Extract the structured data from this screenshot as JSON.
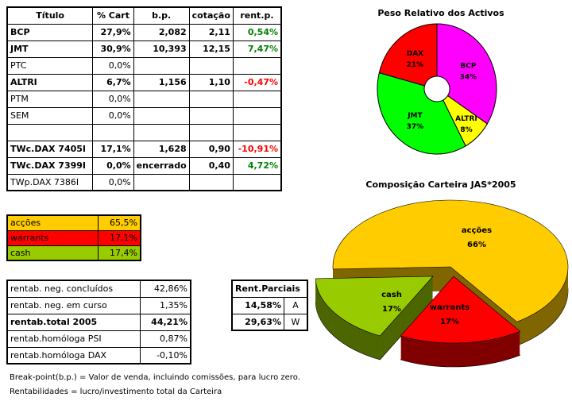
{
  "holdings": {
    "headers": [
      "Título",
      "% Cart",
      "b.p.",
      "cotação",
      "rent.p."
    ],
    "rows": [
      {
        "title": "BCP",
        "pct": "27,9%",
        "bp": "2,082",
        "quote": "2,11",
        "rent": "0,54%",
        "bold": true,
        "sign": "pos"
      },
      {
        "title": "JMT",
        "pct": "30,9%",
        "bp": "10,393",
        "quote": "12,15",
        "rent": "7,47%",
        "bold": true,
        "sign": "pos"
      },
      {
        "title": "PTC",
        "pct": "0,0%",
        "bp": "",
        "quote": "",
        "rent": "",
        "bold": false,
        "sign": ""
      },
      {
        "title": "ALTRI",
        "pct": "6,7%",
        "bp": "1,156",
        "quote": "1,10",
        "rent": "-0,47%",
        "bold": true,
        "sign": "neg"
      },
      {
        "title": "PTM",
        "pct": "0,0%",
        "bp": "",
        "quote": "",
        "rent": "",
        "bold": false,
        "sign": ""
      },
      {
        "title": "SEM",
        "pct": "0,0%",
        "bp": "",
        "quote": "",
        "rent": "",
        "bold": false,
        "sign": ""
      },
      {
        "title": "",
        "pct": "",
        "bp": "",
        "quote": "",
        "rent": "",
        "bold": false,
        "sign": ""
      },
      {
        "title": "TWc.DAX 7405I",
        "pct": "17,1%",
        "bp": "1,628",
        "quote": "0,90",
        "rent": "-10,91%",
        "bold": true,
        "sign": "neg"
      },
      {
        "title": "TWc.DAX 7399I",
        "pct": "0,0%",
        "bp": "encerrado",
        "quote": "0,40",
        "rent": "4,72%",
        "bold": true,
        "sign": "pos"
      },
      {
        "title": "TWp.DAX 7386I",
        "pct": "0,0%",
        "bp": "",
        "quote": "",
        "rent": "",
        "bold": false,
        "sign": ""
      }
    ]
  },
  "allocation": [
    {
      "label": "acções",
      "value": "65,5%",
      "color": "#FFCC00"
    },
    {
      "label": "warrants",
      "value": "17,1%",
      "color": "#FF0000"
    },
    {
      "label": "cash",
      "value": "17,4%",
      "color": "#99CC00"
    }
  ],
  "returns": [
    {
      "label": "rentab. neg. concluídos",
      "value": "42,86%",
      "bold": false
    },
    {
      "label": "rentab. neg. em curso",
      "value": "1,35%",
      "bold": false
    },
    {
      "label": "rentab.total 2005",
      "value": "44,21%",
      "bold": true
    },
    {
      "label": "rentab.homóloga PSI",
      "value": "0,87%",
      "bold": false
    },
    {
      "label": "rentab.homóloga DAX",
      "value": "-0,10%",
      "bold": false
    }
  ],
  "partial": {
    "title": "Rent.Parciais",
    "rows": [
      {
        "value": "14,58%",
        "code": "A"
      },
      {
        "value": "29,63%",
        "code": "W"
      }
    ]
  },
  "notes": [
    "Break-point(b.p.) = Valor de venda, incluindo comissões, para lucro zero.",
    "Rentabilidades = lucro/investimento total da Carteira"
  ],
  "chart_data": [
    {
      "type": "pie",
      "variant": "donut",
      "title": "Peso Relativo dos Activos",
      "slices": [
        {
          "label": "BCP",
          "value": 34,
          "text": "34%",
          "color": "#FF00FF"
        },
        {
          "label": "ALTRI",
          "value": 8,
          "text": "8%",
          "color": "#FFFF00"
        },
        {
          "label": "JMT",
          "value": 37,
          "text": "37%",
          "color": "#00FF00"
        },
        {
          "label": "DAX",
          "value": 21,
          "text": "21%",
          "color": "#FF0000"
        }
      ]
    },
    {
      "type": "pie",
      "variant": "3d-exploded",
      "title": "Composição Carteira JAS*2005",
      "slices": [
        {
          "label": "acções",
          "value": 66,
          "text": "66%",
          "color": "#FFCC00",
          "side": "#806600"
        },
        {
          "label": "warrants",
          "value": 17,
          "text": "17%",
          "color": "#FF0000",
          "side": "#800000"
        },
        {
          "label": "cash",
          "value": 17,
          "text": "17%",
          "color": "#99CC00",
          "side": "#4D6600"
        }
      ]
    }
  ]
}
